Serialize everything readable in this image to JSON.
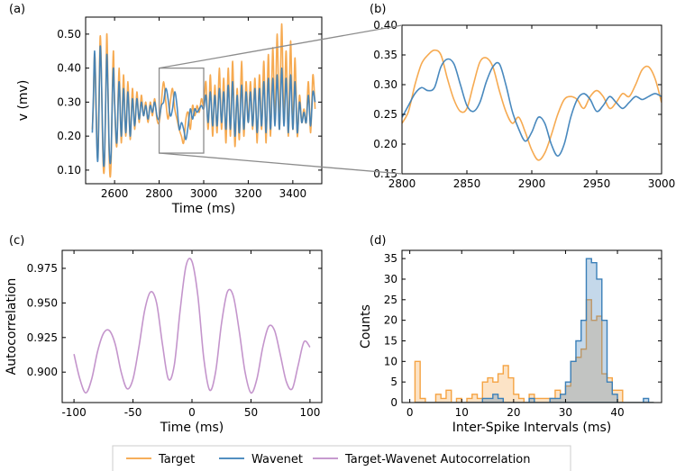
{
  "legend": {
    "placement": "bottom-center",
    "entries": [
      {
        "label": "Target",
        "color": "#F5A342"
      },
      {
        "label": "Wavenet",
        "color": "#3A7FB8"
      },
      {
        "label": "Target-Wavenet Autocorrelation",
        "color": "#BF8CC8"
      }
    ]
  },
  "chart_data": [
    {
      "panel_label": "(a)",
      "type": "line",
      "xlabel": "Time (ms)",
      "ylabel": "v (mv)",
      "xlim": [
        2470,
        3530
      ],
      "ylim": [
        0.06,
        0.55
      ],
      "xticks": [
        2600,
        2800,
        3000,
        3200,
        3400
      ],
      "yticks": [
        0.1,
        0.2,
        0.3,
        0.4,
        0.5
      ],
      "zoom_box": {
        "x": [
          2800,
          3000
        ],
        "y": [
          0.15,
          0.4
        ]
      },
      "series": [
        {
          "name": "Target",
          "color": "#F5A342",
          "x": [
            2500,
            2505,
            2510,
            2515,
            2520,
            2525,
            2530,
            2535,
            2540,
            2545,
            2550,
            2555,
            2560,
            2565,
            2570,
            2575,
            2580,
            2585,
            2590,
            2595,
            2600,
            2610,
            2620,
            2630,
            2640,
            2650,
            2660,
            2670,
            2680,
            2690,
            2700,
            2710,
            2720,
            2730,
            2740,
            2750,
            2760,
            2770,
            2780,
            2790,
            2800,
            2810,
            2820,
            2830,
            2840,
            2850,
            2860,
            2870,
            2880,
            2890,
            2900,
            2910,
            2920,
            2930,
            2940,
            2950,
            2960,
            2970,
            2980,
            2990,
            3000,
            3010,
            3020,
            3030,
            3040,
            3050,
            3060,
            3070,
            3080,
            3090,
            3100,
            3110,
            3120,
            3130,
            3140,
            3150,
            3160,
            3170,
            3180,
            3190,
            3200,
            3210,
            3220,
            3230,
            3240,
            3250,
            3260,
            3270,
            3280,
            3290,
            3300,
            3310,
            3320,
            3330,
            3340,
            3350,
            3360,
            3370,
            3380,
            3390,
            3400,
            3410,
            3420,
            3430,
            3440,
            3450,
            3460,
            3470,
            3480,
            3490,
            3500
          ],
          "y": [
            0.22,
            0.3,
            0.44,
            0.36,
            0.2,
            0.14,
            0.3,
            0.49,
            0.42,
            0.22,
            0.1,
            0.12,
            0.3,
            0.5,
            0.36,
            0.16,
            0.08,
            0.14,
            0.34,
            0.45,
            0.3,
            0.17,
            0.4,
            0.18,
            0.38,
            0.2,
            0.36,
            0.19,
            0.34,
            0.22,
            0.33,
            0.24,
            0.32,
            0.26,
            0.3,
            0.24,
            0.3,
            0.26,
            0.31,
            0.25,
            0.24,
            0.3,
            0.36,
            0.3,
            0.25,
            0.3,
            0.34,
            0.28,
            0.25,
            0.22,
            0.2,
            0.18,
            0.25,
            0.27,
            0.22,
            0.29,
            0.26,
            0.29,
            0.27,
            0.31,
            0.29,
            0.36,
            0.22,
            0.38,
            0.2,
            0.35,
            0.21,
            0.4,
            0.22,
            0.37,
            0.18,
            0.4,
            0.2,
            0.42,
            0.17,
            0.34,
            0.19,
            0.42,
            0.2,
            0.36,
            0.24,
            0.36,
            0.22,
            0.37,
            0.18,
            0.38,
            0.22,
            0.42,
            0.18,
            0.44,
            0.2,
            0.46,
            0.24,
            0.5,
            0.22,
            0.53,
            0.24,
            0.45,
            0.2,
            0.48,
            0.22,
            0.43,
            0.2,
            0.32,
            0.24,
            0.28,
            0.24,
            0.36,
            0.21,
            0.38,
            0.28
          ]
        },
        {
          "name": "Wavenet",
          "color": "#3A7FB8",
          "x": [
            2500,
            2505,
            2510,
            2515,
            2520,
            2525,
            2530,
            2535,
            2540,
            2545,
            2550,
            2555,
            2560,
            2565,
            2570,
            2575,
            2580,
            2585,
            2590,
            2595,
            2600,
            2610,
            2620,
            2630,
            2640,
            2650,
            2660,
            2670,
            2680,
            2690,
            2700,
            2710,
            2720,
            2730,
            2740,
            2750,
            2760,
            2770,
            2780,
            2790,
            2800,
            2810,
            2820,
            2830,
            2840,
            2850,
            2860,
            2870,
            2880,
            2890,
            2900,
            2910,
            2920,
            2930,
            2940,
            2950,
            2960,
            2970,
            2980,
            2990,
            3000,
            3010,
            3020,
            3030,
            3040,
            3050,
            3060,
            3070,
            3080,
            3090,
            3100,
            3110,
            3120,
            3130,
            3140,
            3150,
            3160,
            3170,
            3180,
            3190,
            3200,
            3210,
            3220,
            3230,
            3240,
            3250,
            3260,
            3270,
            3280,
            3290,
            3300,
            3310,
            3320,
            3330,
            3340,
            3350,
            3360,
            3370,
            3380,
            3390,
            3400,
            3410,
            3420,
            3430,
            3440,
            3450,
            3460,
            3470,
            3480,
            3490,
            3500
          ],
          "y": [
            0.21,
            0.32,
            0.45,
            0.34,
            0.18,
            0.13,
            0.28,
            0.46,
            0.4,
            0.24,
            0.12,
            0.14,
            0.3,
            0.44,
            0.34,
            0.18,
            0.12,
            0.16,
            0.32,
            0.4,
            0.3,
            0.18,
            0.36,
            0.2,
            0.34,
            0.21,
            0.33,
            0.2,
            0.31,
            0.23,
            0.31,
            0.25,
            0.3,
            0.26,
            0.29,
            0.25,
            0.29,
            0.27,
            0.3,
            0.26,
            0.25,
            0.29,
            0.3,
            0.34,
            0.31,
            0.26,
            0.28,
            0.33,
            0.29,
            0.22,
            0.24,
            0.22,
            0.19,
            0.23,
            0.28,
            0.25,
            0.28,
            0.27,
            0.28,
            0.29,
            0.28,
            0.32,
            0.24,
            0.33,
            0.23,
            0.32,
            0.23,
            0.34,
            0.24,
            0.33,
            0.22,
            0.35,
            0.22,
            0.36,
            0.2,
            0.32,
            0.21,
            0.35,
            0.22,
            0.33,
            0.24,
            0.33,
            0.23,
            0.34,
            0.21,
            0.34,
            0.23,
            0.36,
            0.21,
            0.37,
            0.22,
            0.37,
            0.23,
            0.38,
            0.22,
            0.4,
            0.23,
            0.37,
            0.21,
            0.38,
            0.22,
            0.36,
            0.21,
            0.3,
            0.24,
            0.27,
            0.24,
            0.32,
            0.23,
            0.33,
            0.3
          ]
        }
      ]
    },
    {
      "panel_label": "(b)",
      "type": "line",
      "xlabel": "",
      "ylabel": "",
      "xlim": [
        2800,
        3000
      ],
      "ylim": [
        0.15,
        0.4
      ],
      "xticks": [
        2800,
        2850,
        2900,
        2950,
        3000
      ],
      "yticks": [
        0.15,
        0.2,
        0.25,
        0.3,
        0.35,
        0.4
      ],
      "series": [
        {
          "name": "Target",
          "color": "#F5A342",
          "x": [
            2800,
            2805,
            2810,
            2815,
            2820,
            2825,
            2830,
            2835,
            2840,
            2845,
            2850,
            2855,
            2860,
            2865,
            2870,
            2875,
            2880,
            2885,
            2890,
            2895,
            2900,
            2905,
            2910,
            2915,
            2920,
            2925,
            2930,
            2935,
            2940,
            2945,
            2950,
            2955,
            2960,
            2965,
            2970,
            2975,
            2980,
            2985,
            2990,
            2995,
            3000
          ],
          "y": [
            0.235,
            0.255,
            0.3,
            0.335,
            0.35,
            0.358,
            0.35,
            0.31,
            0.275,
            0.255,
            0.26,
            0.3,
            0.338,
            0.345,
            0.33,
            0.29,
            0.255,
            0.235,
            0.245,
            0.22,
            0.19,
            0.173,
            0.185,
            0.215,
            0.25,
            0.275,
            0.28,
            0.275,
            0.26,
            0.28,
            0.29,
            0.28,
            0.26,
            0.27,
            0.285,
            0.28,
            0.3,
            0.325,
            0.33,
            0.31,
            0.27
          ]
        },
        {
          "name": "Wavenet",
          "color": "#3A7FB8",
          "x": [
            2800,
            2805,
            2810,
            2815,
            2820,
            2825,
            2830,
            2835,
            2840,
            2845,
            2850,
            2855,
            2860,
            2865,
            2870,
            2875,
            2880,
            2885,
            2890,
            2895,
            2900,
            2905,
            2910,
            2915,
            2920,
            2925,
            2930,
            2935,
            2940,
            2945,
            2950,
            2955,
            2960,
            2965,
            2970,
            2975,
            2980,
            2985,
            2990,
            2995,
            3000
          ],
          "y": [
            0.245,
            0.265,
            0.285,
            0.295,
            0.29,
            0.295,
            0.33,
            0.343,
            0.335,
            0.3,
            0.265,
            0.255,
            0.27,
            0.305,
            0.33,
            0.335,
            0.3,
            0.255,
            0.225,
            0.205,
            0.22,
            0.245,
            0.235,
            0.2,
            0.18,
            0.2,
            0.245,
            0.275,
            0.285,
            0.275,
            0.255,
            0.265,
            0.28,
            0.27,
            0.26,
            0.27,
            0.28,
            0.275,
            0.28,
            0.285,
            0.28
          ]
        }
      ]
    },
    {
      "panel_label": "(c)",
      "type": "line",
      "xlabel": "Time (ms)",
      "ylabel": "Autocorrelation",
      "xlim": [
        -110,
        110
      ],
      "ylim": [
        0.878,
        0.988
      ],
      "xticks": [
        -100,
        -50,
        0,
        50,
        100
      ],
      "yticks": [
        0.9,
        0.925,
        0.95,
        0.975
      ],
      "series": [
        {
          "name": "Target-Wavenet Autocorrelation",
          "color": "#BF8CC8",
          "x": [
            -100,
            -95,
            -90,
            -85,
            -80,
            -75,
            -70,
            -65,
            -60,
            -55,
            -50,
            -45,
            -40,
            -35,
            -30,
            -25,
            -20,
            -15,
            -10,
            -5,
            0,
            5,
            10,
            15,
            20,
            25,
            30,
            35,
            40,
            45,
            50,
            55,
            60,
            65,
            70,
            75,
            80,
            85,
            90,
            95,
            100
          ],
          "y": [
            0.913,
            0.895,
            0.885,
            0.895,
            0.915,
            0.928,
            0.93,
            0.92,
            0.9,
            0.888,
            0.895,
            0.918,
            0.945,
            0.958,
            0.95,
            0.92,
            0.895,
            0.905,
            0.945,
            0.977,
            0.98,
            0.955,
            0.91,
            0.887,
            0.9,
            0.935,
            0.958,
            0.955,
            0.93,
            0.9,
            0.885,
            0.895,
            0.918,
            0.933,
            0.93,
            0.912,
            0.893,
            0.888,
            0.905,
            0.922,
            0.918
          ]
        }
      ]
    },
    {
      "panel_label": "(d)",
      "type": "bar",
      "xlabel": "Inter-Spike Intervals (ms)",
      "ylabel": "Counts",
      "xlim": [
        -1.5,
        48.5
      ],
      "ylim": [
        0,
        37
      ],
      "xticks": [
        0,
        10,
        20,
        30,
        40
      ],
      "yticks": [
        0,
        5,
        10,
        15,
        20,
        25,
        30,
        35
      ],
      "bin_width": 1,
      "bin_start": 1,
      "series": [
        {
          "name": "Target",
          "color": "#F5A342",
          "values": [
            10,
            1,
            0,
            0,
            2,
            1,
            3,
            0,
            1,
            0,
            1,
            2,
            1,
            5,
            6,
            5,
            7,
            9,
            6,
            2,
            1,
            0,
            2,
            1,
            1,
            1,
            1,
            3,
            2,
            4,
            10,
            11,
            13,
            25,
            20,
            21,
            7,
            6,
            3,
            3,
            0,
            0,
            0,
            0,
            0,
            0
          ]
        },
        {
          "name": "Wavenet",
          "color": "#3A7FB8",
          "values": [
            0,
            0,
            0,
            0,
            0,
            0,
            0,
            0,
            0,
            0,
            0,
            0,
            0,
            1,
            1,
            2,
            1,
            0,
            0,
            0,
            0,
            0,
            1,
            0,
            0,
            0,
            1,
            1,
            2,
            5,
            10,
            15,
            20,
            35,
            34,
            30,
            20,
            5,
            2,
            0,
            0,
            0,
            0,
            0,
            1,
            0
          ]
        }
      ]
    }
  ]
}
